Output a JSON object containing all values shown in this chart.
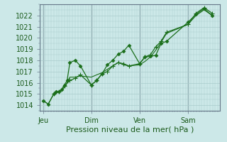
{
  "bg_color": "#cce8e8",
  "grid_color": "#aacccc",
  "line_color": "#1a6e1a",
  "marker_color": "#1a6e1a",
  "xlabel": "Pression niveau de la mer( hPa )",
  "xlabel_fontsize": 8,
  "tick_fontsize": 7,
  "ylim": [
    1013.5,
    1023.0
  ],
  "yticks": [
    1014,
    1015,
    1016,
    1017,
    1018,
    1019,
    1020,
    1021,
    1022
  ],
  "xtick_labels": [
    "Jeu",
    "Dim",
    "Ven",
    "Sam"
  ],
  "xtick_positions": [
    0,
    3,
    6,
    9
  ],
  "vline_positions": [
    0,
    3,
    6,
    9
  ],
  "total_hours": 12,
  "series1_x": [
    0.0,
    0.33,
    0.67,
    0.83,
    1.0,
    1.17,
    1.33,
    1.5,
    1.67,
    2.0,
    2.33,
    3.0,
    3.33,
    3.67,
    4.0,
    4.33,
    4.67,
    5.0,
    5.33,
    6.0,
    6.33,
    6.67,
    7.0,
    7.33,
    7.67,
    9.0,
    9.5,
    10.0,
    10.5
  ],
  "series1_y": [
    1014.4,
    1014.1,
    1015.0,
    1015.2,
    1015.2,
    1015.4,
    1015.8,
    1016.2,
    1017.8,
    1018.0,
    1017.5,
    1015.8,
    1016.2,
    1016.8,
    1017.6,
    1018.0,
    1018.55,
    1018.8,
    1019.35,
    1017.7,
    1018.3,
    1018.35,
    1018.45,
    1019.5,
    1019.7,
    1021.4,
    1022.1,
    1022.6,
    1022.0
  ],
  "series2_x": [
    0.0,
    0.33,
    0.67,
    0.83,
    1.0,
    1.17,
    1.33,
    1.5,
    1.67,
    2.0,
    2.33,
    3.0,
    3.33,
    3.67,
    4.0,
    4.33,
    4.67,
    5.0,
    5.33,
    6.0,
    6.33,
    6.67,
    7.0,
    7.33,
    7.67,
    9.0,
    9.5,
    10.0,
    10.5
  ],
  "series2_y": [
    1014.4,
    1014.1,
    1015.0,
    1015.1,
    1015.2,
    1015.3,
    1015.6,
    1016.0,
    1016.5,
    1016.5,
    1016.6,
    1016.5,
    1016.7,
    1016.9,
    1017.2,
    1017.5,
    1017.8,
    1017.6,
    1017.5,
    1017.6,
    1017.9,
    1018.3,
    1018.9,
    1019.6,
    1020.4,
    1021.2,
    1022.0,
    1022.5,
    1022.0
  ],
  "series3_x": [
    0.67,
    1.0,
    1.33,
    1.67,
    2.0,
    2.33,
    3.0,
    3.33,
    3.67,
    4.0,
    4.33,
    4.67,
    5.0,
    5.33,
    6.0,
    6.33,
    6.67,
    7.0,
    7.33,
    7.67,
    9.0,
    9.5,
    10.0,
    10.5
  ],
  "series3_y": [
    1015.0,
    1015.2,
    1015.7,
    1016.2,
    1016.4,
    1016.7,
    1015.8,
    1016.2,
    1016.8,
    1017.0,
    1017.5,
    1017.8,
    1017.7,
    1017.5,
    1017.7,
    1018.3,
    1018.5,
    1019.2,
    1019.7,
    1020.5,
    1021.2,
    1022.2,
    1022.7,
    1022.2
  ]
}
